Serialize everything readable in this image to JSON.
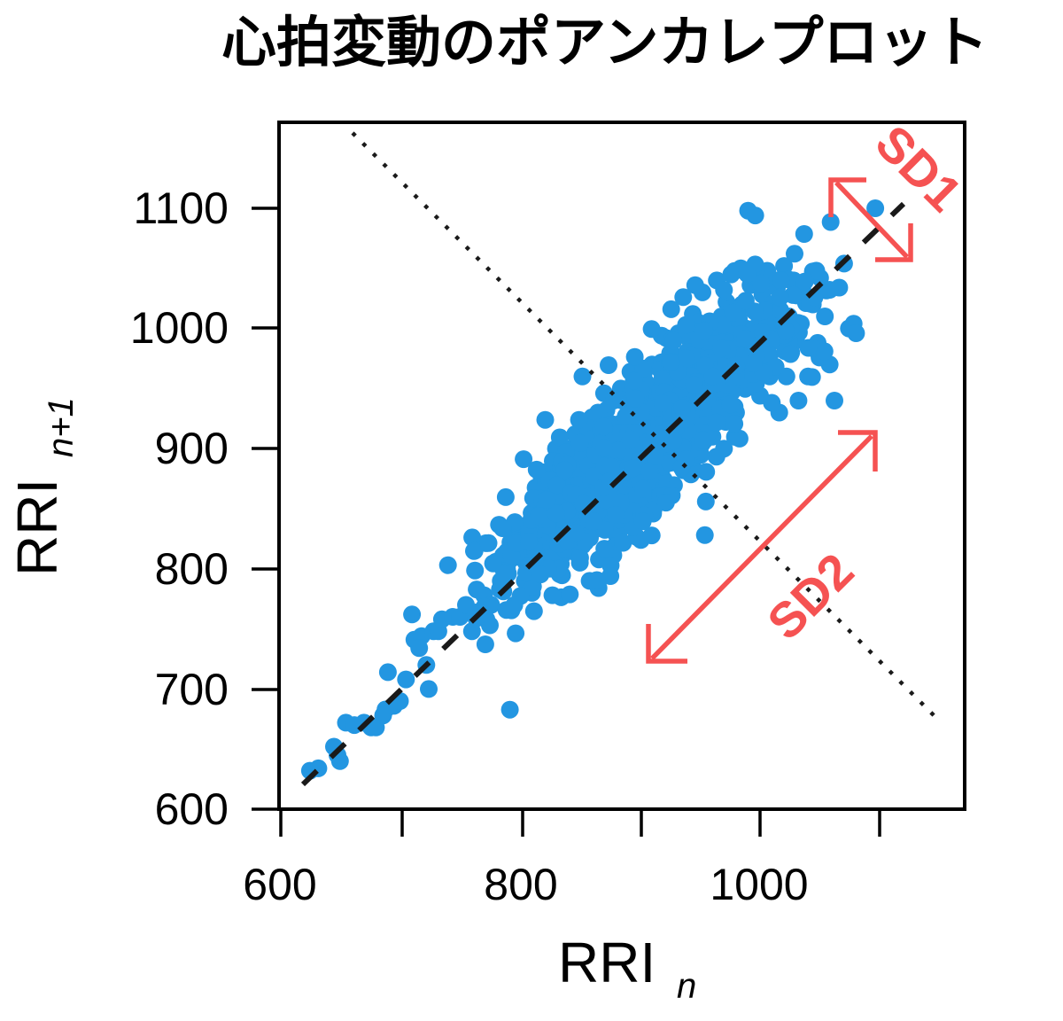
{
  "title": "心拍変動のポアンカレプロット",
  "colors": {
    "points": "#2396e1",
    "annotation": "#f55252",
    "identity_line": "#1a1a1a",
    "axis": "#000000"
  },
  "chart_data": {
    "type": "scatter",
    "title": "心拍変動のポアンカレプロット",
    "xlabel": "RRI",
    "xlabel_subscript": "n",
    "ylabel": "RRI",
    "ylabel_subscript": "n+1",
    "xlim": [
      600,
      1170
    ],
    "ylim": [
      600,
      1170
    ],
    "xticks": [
      600,
      700,
      800,
      900,
      1000,
      1100
    ],
    "xtick_labels": [
      "600",
      "",
      "800",
      "",
      "1000",
      ""
    ],
    "yticks": [
      600,
      700,
      800,
      900,
      1000,
      1100
    ],
    "ytick_labels": [
      "600",
      "700",
      "800",
      "900",
      "1000",
      "1100"
    ],
    "grid": false,
    "lines": [
      {
        "name": "identity",
        "style": "dashed",
        "from": [
          620,
          620
        ],
        "to": [
          1100,
          1100
        ]
      },
      {
        "name": "perpendicular",
        "style": "dotted",
        "from": [
          662,
          1160
        ],
        "to": [
          1150,
          670
        ]
      }
    ],
    "annotations": [
      {
        "text": "SD1",
        "direction": "perpendicular to identity line",
        "arrow_from": [
          1060,
          1122
        ],
        "arrow_to": [
          1122,
          1060
        ]
      },
      {
        "text": "SD2",
        "direction": "along identity line",
        "arrow_from": [
          910,
          725
        ],
        "arrow_to": [
          1100,
          915
        ]
      }
    ],
    "series": [
      {
        "name": "RRI pairs",
        "points": [
          [
            625,
            632
          ],
          [
            632,
            634
          ],
          [
            645,
            652
          ],
          [
            650,
            640
          ],
          [
            648,
            645
          ],
          [
            655,
            672
          ],
          [
            662,
            670
          ],
          [
            670,
            672
          ],
          [
            676,
            668
          ],
          [
            680,
            668
          ],
          [
            688,
            683
          ],
          [
            690,
            714
          ],
          [
            686,
            678
          ],
          [
            695,
            686
          ],
          [
            700,
            690
          ],
          [
            705,
            708
          ],
          [
            710,
            762
          ],
          [
            712,
            741
          ],
          [
            718,
            744
          ],
          [
            716,
            734
          ],
          [
            722,
            720
          ],
          [
            724,
            700
          ],
          [
            728,
            748
          ],
          [
            732,
            748
          ],
          [
            735,
            758
          ],
          [
            740,
            803
          ],
          [
            744,
            760
          ],
          [
            750,
            760
          ],
          [
            755,
            770
          ],
          [
            760,
            748
          ],
          [
            765,
            764
          ],
          [
            770,
            778
          ],
          [
            772,
            758
          ],
          [
            776,
            770
          ],
          [
            780,
            806
          ],
          [
            784,
            790
          ],
          [
            786,
            800
          ],
          [
            790,
            796
          ],
          [
            792,
            822
          ],
          [
            795,
            834
          ],
          [
            798,
            810
          ],
          [
            800,
            830
          ],
          [
            804,
            790
          ],
          [
            806,
            803
          ],
          [
            810,
            780
          ],
          [
            812,
            845
          ],
          [
            815,
            826
          ],
          [
            818,
            876
          ],
          [
            820,
            860
          ],
          [
            822,
            822
          ],
          [
            824,
            868
          ],
          [
            826,
            806
          ],
          [
            828,
            882
          ],
          [
            830,
            840
          ],
          [
            832,
            848
          ],
          [
            834,
            804
          ],
          [
            836,
            892
          ],
          [
            838,
            866
          ],
          [
            840,
            856
          ],
          [
            842,
            900
          ],
          [
            844,
            830
          ],
          [
            846,
            912
          ],
          [
            848,
            872
          ],
          [
            850,
            894
          ],
          [
            852,
            960
          ],
          [
            854,
            840
          ],
          [
            856,
            918
          ],
          [
            858,
            790
          ],
          [
            860,
            880
          ],
          [
            862,
            906
          ],
          [
            864,
            866
          ],
          [
            866,
            920
          ],
          [
            868,
            850
          ],
          [
            870,
            886
          ],
          [
            872,
            932
          ],
          [
            874,
            900
          ],
          [
            876,
            870
          ],
          [
            878,
            940
          ],
          [
            880,
            912
          ],
          [
            882,
            858
          ],
          [
            884,
            950
          ],
          [
            886,
            896
          ],
          [
            888,
            920
          ],
          [
            890,
            880
          ],
          [
            892,
            964
          ],
          [
            894,
            906
          ],
          [
            896,
            936
          ],
          [
            898,
            872
          ],
          [
            900,
            926
          ],
          [
            902,
            960
          ],
          [
            904,
            900
          ],
          [
            906,
            942
          ],
          [
            908,
            880
          ],
          [
            910,
            970
          ],
          [
            912,
            916
          ],
          [
            914,
            948
          ],
          [
            916,
            862
          ],
          [
            918,
            994
          ],
          [
            920,
            930
          ],
          [
            922,
            962
          ],
          [
            924,
            904
          ],
          [
            926,
            980
          ],
          [
            928,
            940
          ],
          [
            930,
            910
          ],
          [
            932,
            996
          ],
          [
            934,
            956
          ],
          [
            936,
            882
          ],
          [
            938,
            1000
          ],
          [
            940,
            970
          ],
          [
            942,
            930
          ],
          [
            944,
            1012
          ],
          [
            946,
            950
          ],
          [
            948,
            900
          ],
          [
            950,
            988
          ],
          [
            952,
            1030
          ],
          [
            954,
            920
          ],
          [
            956,
            968
          ],
          [
            958,
            1006
          ],
          [
            960,
            940
          ],
          [
            962,
            986
          ],
          [
            964,
            1040
          ],
          [
            966,
            960
          ],
          [
            968,
            1010
          ],
          [
            970,
            900
          ],
          [
            972,
            1022
          ],
          [
            974,
            976
          ],
          [
            976,
            1045
          ],
          [
            978,
            990
          ],
          [
            980,
            930
          ],
          [
            982,
            1016
          ],
          [
            984,
            1050
          ],
          [
            986,
            960
          ],
          [
            988,
            1000
          ],
          [
            990,
            1098
          ],
          [
            992,
            1036
          ],
          [
            994,
            970
          ],
          [
            996,
            1094
          ],
          [
            998,
            1012
          ],
          [
            1000,
            944
          ],
          [
            1002,
            1028
          ],
          [
            1004,
            980
          ],
          [
            1006,
            1048
          ],
          [
            1008,
            960
          ],
          [
            1010,
            1020
          ],
          [
            1012,
            990
          ],
          [
            1014,
            1040
          ],
          [
            1016,
            930
          ],
          [
            1018,
            1000
          ],
          [
            1020,
            1052
          ],
          [
            1022,
            960
          ],
          [
            1024,
            1010
          ],
          [
            1026,
            980
          ],
          [
            1028,
            1040
          ],
          [
            1030,
            990
          ],
          [
            1032,
            940
          ],
          [
            1034,
            1004
          ],
          [
            1036,
            1030
          ],
          [
            1040,
            960
          ],
          [
            1044,
            1020
          ],
          [
            1048,
            988
          ],
          [
            1050,
            1042
          ],
          [
            1054,
            1010
          ],
          [
            1058,
            970
          ],
          [
            1062,
            940
          ],
          [
            1066,
            1034
          ],
          [
            1070,
            1054
          ],
          [
            1074,
            1000
          ],
          [
            1078,
            1004
          ],
          [
            1080,
            996
          ],
          [
            1096,
            1100
          ],
          [
            845,
            876
          ],
          [
            855,
            906
          ],
          [
            865,
            930
          ],
          [
            875,
            920
          ],
          [
            885,
            870
          ],
          [
            895,
            944
          ],
          [
            905,
            920
          ],
          [
            915,
            896
          ],
          [
            925,
            952
          ],
          [
            935,
            926
          ],
          [
            945,
            976
          ],
          [
            955,
            940
          ],
          [
            965,
            992
          ],
          [
            975,
            950
          ],
          [
            985,
            1020
          ],
          [
            995,
            1000
          ],
          [
            1005,
            962
          ],
          [
            1015,
            1012
          ],
          [
            900,
            870
          ],
          [
            910,
            890
          ],
          [
            920,
            956
          ],
          [
            930,
            936
          ],
          [
            940,
            890
          ],
          [
            950,
            960
          ],
          [
            960,
            1000
          ],
          [
            970,
            1032
          ],
          [
            880,
            906
          ],
          [
            870,
            946
          ],
          [
            860,
            926
          ],
          [
            850,
            886
          ],
          [
            840,
            876
          ],
          [
            830,
            900
          ],
          [
            820,
            880
          ],
          [
            946,
            1036
          ],
          [
            936,
            1026
          ],
          [
            926,
            1016
          ],
          [
            996,
            1048
          ],
          [
            1006,
            1006
          ],
          [
            916,
            932
          ],
          [
            906,
            900
          ]
        ]
      }
    ]
  },
  "axes": {
    "x": {
      "label": "RRI",
      "subscript": "n",
      "tick_labels": [
        "600",
        "800",
        "1000"
      ]
    },
    "y": {
      "label": "RRI",
      "subscript": "n+1",
      "tick_labels": [
        "1100",
        "1000",
        "900",
        "800",
        "700",
        "600"
      ]
    }
  },
  "annotations": {
    "sd1": "SD1",
    "sd2": "SD2"
  }
}
